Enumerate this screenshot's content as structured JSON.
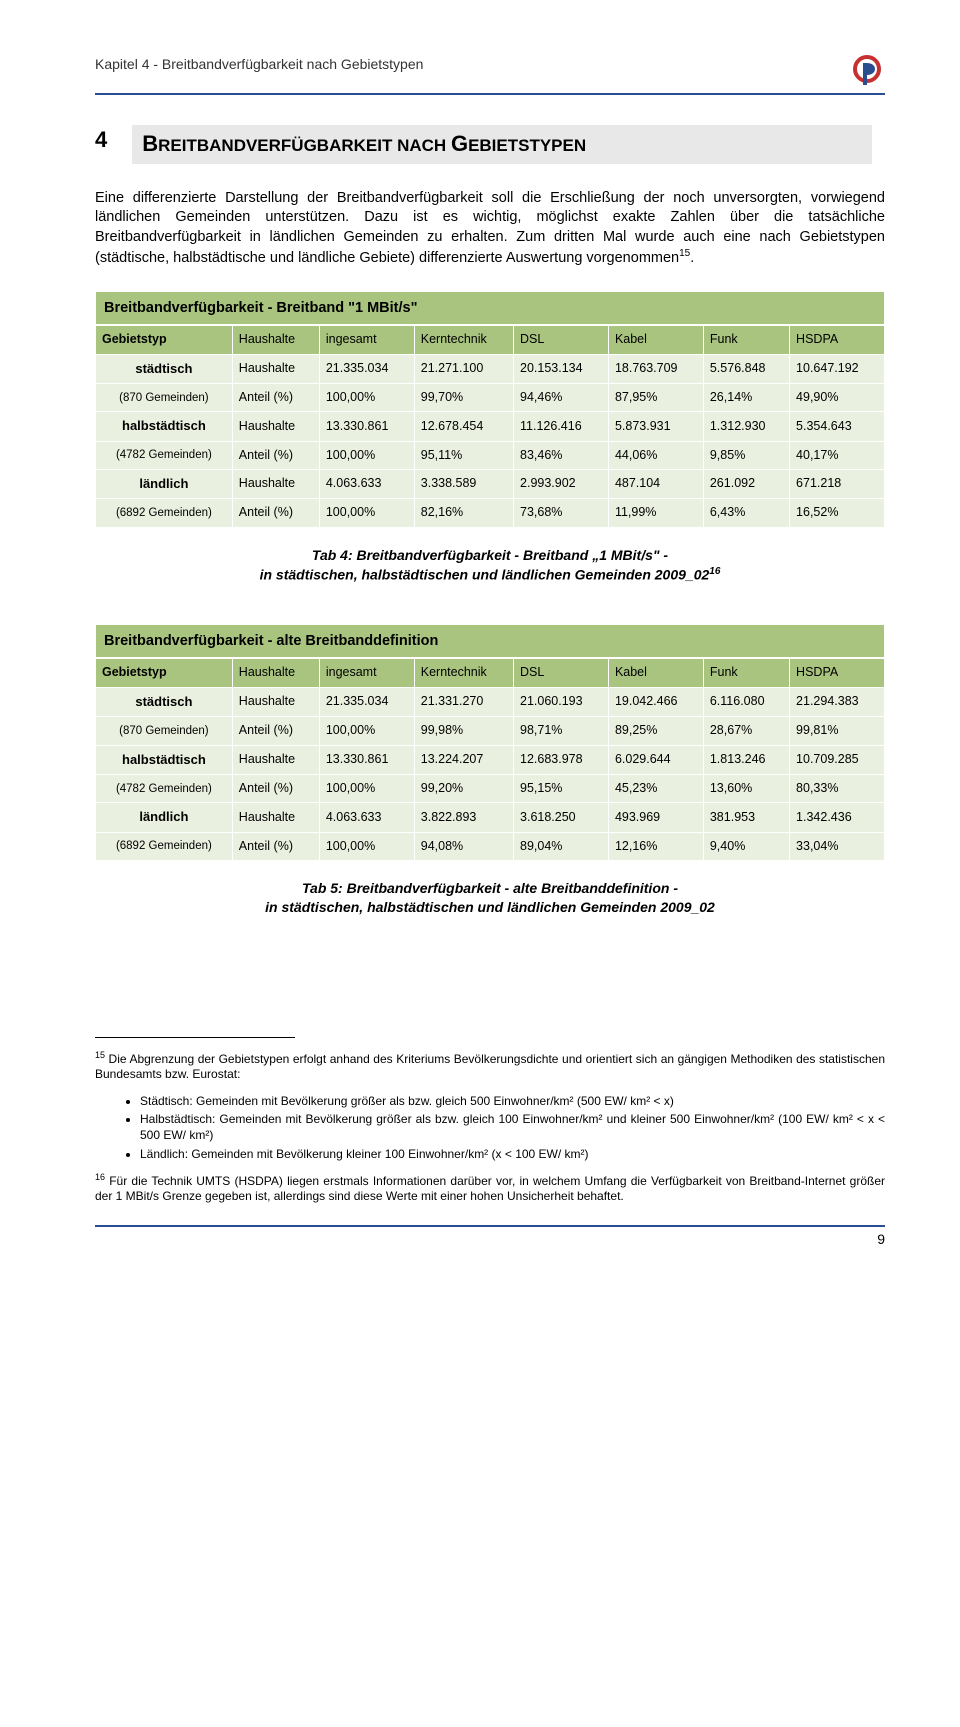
{
  "header": {
    "chapter": "Kapitel 4 - Breitbandverfügbarkeit nach Gebietstypen"
  },
  "section": {
    "number": "4",
    "title_prefix": "B",
    "title_word1_rest": "REITBANDVERFÜGBARKEIT",
    "title_word2": " NACH ",
    "title_word3_first": "G",
    "title_word3_rest": "EBIETSTYPEN"
  },
  "paragraph": "Eine differenzierte Darstellung der Breitbandverfügbarkeit soll die Erschließung der noch unversorgten, vorwiegend ländlichen Gemeinden unterstützen. Dazu ist es wichtig, möglichst exakte Zahlen über die tatsächliche Breitbandverfügbarkeit in ländlichen Gemeinden zu erhalten. Zum dritten Mal wurde auch eine nach Gebietstypen (städtische, halbstädtische und ländliche Gebiete) differenzierte Auswertung vorgenommen",
  "paragraph_fn": "15",
  "table1": {
    "title": "Breitbandverfügbarkeit - Breitband \"1 MBit/s\"",
    "col_headers": [
      "Gebietstyp",
      "Haushalte",
      "ingesamt",
      "Kerntechnik",
      "DSL",
      "Kabel",
      "Funk",
      "HSDPA"
    ],
    "groups": [
      {
        "label": "städtisch",
        "sub": "(870 Gemeinden)",
        "rows": [
          {
            "metric": "Haushalte",
            "cells": [
              "21.335.034",
              "21.271.100",
              "20.153.134",
              "18.763.709",
              "5.576.848",
              "10.647.192"
            ]
          },
          {
            "metric": "Anteil (%)",
            "cells": [
              "100,00%",
              "99,70%",
              "94,46%",
              "87,95%",
              "26,14%",
              "49,90%"
            ]
          }
        ]
      },
      {
        "label": "halbstädtisch",
        "sub": "(4782 Gemeinden)",
        "rows": [
          {
            "metric": "Haushalte",
            "cells": [
              "13.330.861",
              "12.678.454",
              "11.126.416",
              "5.873.931",
              "1.312.930",
              "5.354.643"
            ]
          },
          {
            "metric": "Anteil (%)",
            "cells": [
              "100,00%",
              "95,11%",
              "83,46%",
              "44,06%",
              "9,85%",
              "40,17%"
            ]
          }
        ]
      },
      {
        "label": "ländlich",
        "sub": "(6892 Gemeinden)",
        "rows": [
          {
            "metric": "Haushalte",
            "cells": [
              "4.063.633",
              "3.338.589",
              "2.993.902",
              "487.104",
              "261.092",
              "671.218"
            ]
          },
          {
            "metric": "Anteil (%)",
            "cells": [
              "100,00%",
              "82,16%",
              "73,68%",
              "11,99%",
              "6,43%",
              "16,52%"
            ]
          }
        ]
      }
    ]
  },
  "caption1_line1": "Tab 4:  Breitbandverfügbarkeit - Breitband „1 MBit/s\" -",
  "caption1_line2": "in städtischen, halbstädtischen und ländlichen Gemeinden 2009_02",
  "caption1_fn": "16",
  "table2": {
    "title": "Breitbandverfügbarkeit - alte Breitbanddefinition",
    "col_headers": [
      "Gebietstyp",
      "Haushalte",
      "ingesamt",
      "Kerntechnik",
      "DSL",
      "Kabel",
      "Funk",
      "HSDPA"
    ],
    "groups": [
      {
        "label": "städtisch",
        "sub": "(870 Gemeinden)",
        "rows": [
          {
            "metric": "Haushalte",
            "cells": [
              "21.335.034",
              "21.331.270",
              "21.060.193",
              "19.042.466",
              "6.116.080",
              "21.294.383"
            ]
          },
          {
            "metric": "Anteil (%)",
            "cells": [
              "100,00%",
              "99,98%",
              "98,71%",
              "89,25%",
              "28,67%",
              "99,81%"
            ]
          }
        ]
      },
      {
        "label": "halbstädtisch",
        "sub": "(4782 Gemeinden)",
        "rows": [
          {
            "metric": "Haushalte",
            "cells": [
              "13.330.861",
              "13.224.207",
              "12.683.978",
              "6.029.644",
              "1.813.246",
              "10.709.285"
            ]
          },
          {
            "metric": "Anteil (%)",
            "cells": [
              "100,00%",
              "99,20%",
              "95,15%",
              "45,23%",
              "13,60%",
              "80,33%"
            ]
          }
        ]
      },
      {
        "label": "ländlich",
        "sub": "(6892 Gemeinden)",
        "rows": [
          {
            "metric": "Haushalte",
            "cells": [
              "4.063.633",
              "3.822.893",
              "3.618.250",
              "493.969",
              "381.953",
              "1.342.436"
            ]
          },
          {
            "metric": "Anteil (%)",
            "cells": [
              "100,00%",
              "94,08%",
              "89,04%",
              "12,16%",
              "9,40%",
              "33,04%"
            ]
          }
        ]
      }
    ]
  },
  "caption2_line1": "Tab 5:  Breitbandverfügbarkeit - alte Breitbanddefinition -",
  "caption2_line2": "in städtischen, halbstädtischen und ländlichen Gemeinden 2009_02",
  "footnotes": {
    "fn15_num": "15",
    "fn15_text": " Die Abgrenzung der Gebietstypen erfolgt anhand des Kriteriums Bevölkerungsdichte und orientiert sich an gängigen Methodiken des statistischen Bundesamts bzw. Eurostat:",
    "fn15_list": [
      "Städtisch: Gemeinden mit Bevölkerung größer als bzw. gleich 500 Einwohner/km² (500 EW/ km² < x)",
      "Halbstädtisch: Gemeinden mit Bevölkerung größer als bzw. gleich 100 Einwohner/km² und kleiner 500 Einwohner/km² (100 EW/ km² < x < 500 EW/ km²)",
      "Ländlich: Gemeinden mit Bevölkerung kleiner 100 Einwohner/km² (x < 100 EW/ km²)"
    ],
    "fn16_num": "16",
    "fn16_text": " Für die Technik UMTS (HSDPA) liegen erstmals Informationen darüber vor, in welchem Umfang die Verfügbarkeit von Breitband-Internet größer der 1 MBit/s Grenze gegeben ist, allerdings sind diese Werte mit einer hohen Unsicherheit behaftet."
  },
  "page_number": "9",
  "colors": {
    "rule": "#2a4d8f",
    "th_bg": "#a9c47f",
    "group_bg": "#d5e3bd",
    "cell_bg": "#eaf0df"
  }
}
